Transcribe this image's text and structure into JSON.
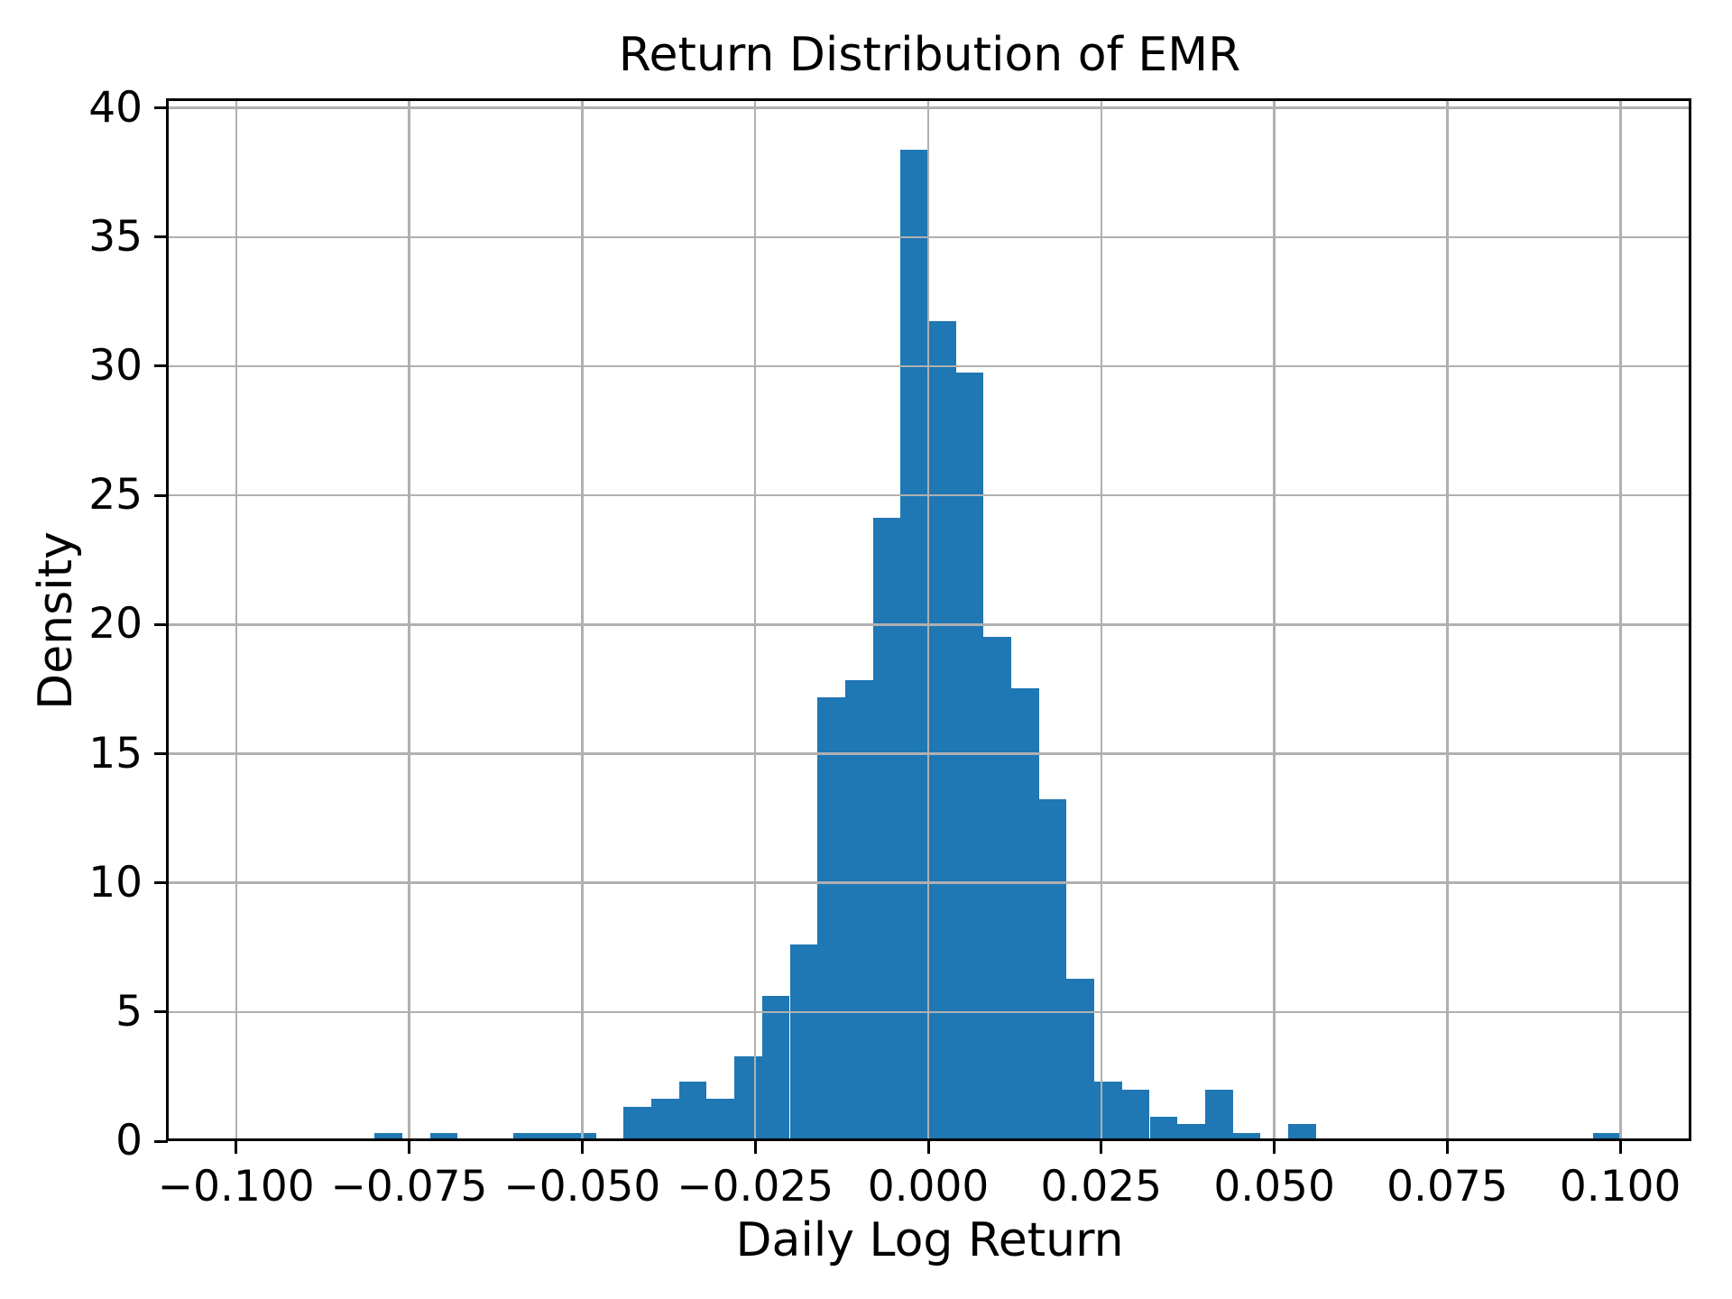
{
  "title": "Return Distribution of EMR",
  "axes": {
    "xlabel": "Daily Log Return",
    "ylabel": "Density",
    "x_tick_values": [
      -0.1,
      -0.075,
      -0.05,
      -0.025,
      0.0,
      0.025,
      0.05,
      0.075,
      0.1
    ],
    "x_tick_labels": [
      "−0.100",
      "−0.075",
      "−0.050",
      "−0.025",
      "0.000",
      "0.025",
      "0.050",
      "0.075",
      "0.100"
    ],
    "y_tick_values": [
      0,
      5,
      10,
      15,
      20,
      25,
      30,
      35,
      40
    ],
    "y_tick_labels": [
      "0",
      "5",
      "10",
      "15",
      "20",
      "25",
      "30",
      "35",
      "40"
    ],
    "xlim": [
      -0.10987,
      0.11027
    ],
    "ylim": [
      0,
      40.3
    ],
    "grid": true
  },
  "colors": {
    "bar": "#1f77b4",
    "grid": "#b0b0b0",
    "axis": "#000000",
    "background": "#ffffff"
  },
  "chart_data": {
    "type": "bar",
    "subtype": "histogram",
    "title": "Return Distribution of EMR",
    "xlabel": "Daily Log Return",
    "ylabel": "Density",
    "legend": false,
    "grid": true,
    "bin_width": 0.004,
    "bin_edges": [
      -0.08,
      -0.076,
      -0.072,
      -0.068,
      -0.064,
      -0.06,
      -0.056,
      -0.052,
      -0.048,
      -0.044,
      -0.04,
      -0.036,
      -0.032,
      -0.028,
      -0.024,
      -0.02,
      -0.016,
      -0.012,
      -0.008,
      -0.004,
      0.0,
      0.004,
      0.008,
      0.012,
      0.016,
      0.02,
      0.024,
      0.028,
      0.032,
      0.036,
      0.04,
      0.044,
      0.048,
      0.052,
      0.056,
      0.06,
      0.064,
      0.068,
      0.072,
      0.076,
      0.08,
      0.084,
      0.088,
      0.092,
      0.096,
      0.1
    ],
    "densities": [
      0.33,
      0,
      0.33,
      0,
      0,
      0.33,
      0.33,
      0.33,
      0,
      1.32,
      1.65,
      2.31,
      1.65,
      3.3,
      5.62,
      7.6,
      17.19,
      17.85,
      24.15,
      38.37,
      31.76,
      29.76,
      19.51,
      17.52,
      13.22,
      6.28,
      2.31,
      1.98,
      0.95,
      0.66,
      1.98,
      0.33,
      0,
      0.66,
      0,
      0,
      0,
      0,
      0,
      0,
      0,
      0,
      0,
      0,
      0.33
    ],
    "xlim": [
      -0.10987,
      0.11027
    ],
    "ylim": [
      0,
      40.3
    ]
  }
}
